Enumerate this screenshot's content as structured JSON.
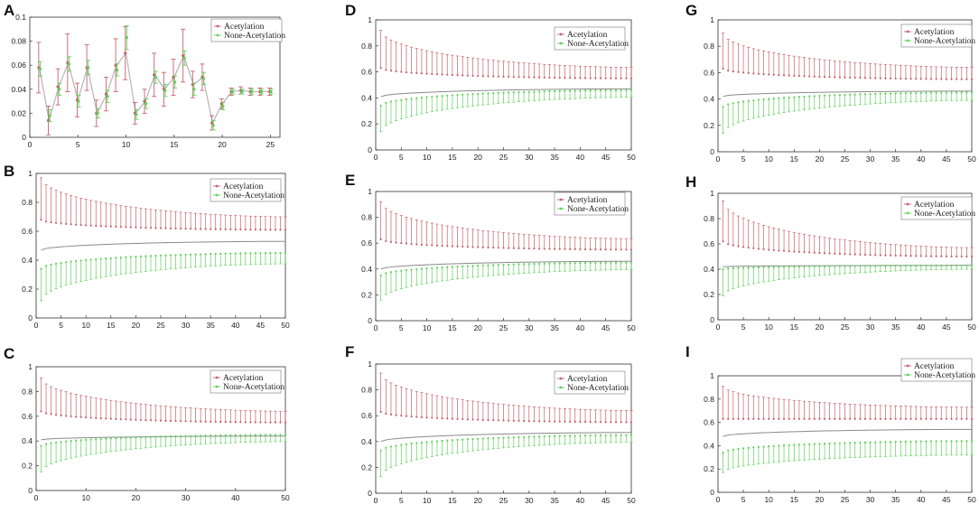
{
  "colors": {
    "acetylation": "#c9616b",
    "none_acetylation": "#5fd25a",
    "mean_line": "#8a8a8a",
    "axis": "#333333"
  },
  "chart_data": [
    {
      "id": "A",
      "letter": "A",
      "type": "line",
      "legend": [
        "Acetylation",
        "None-Acetylation"
      ],
      "x": [
        1,
        2,
        3,
        4,
        5,
        6,
        7,
        8,
        9,
        10,
        11,
        12,
        13,
        14,
        15,
        16,
        17,
        18,
        19,
        20,
        21,
        22,
        23,
        24,
        25
      ],
      "xlim": [
        0,
        26
      ],
      "ylim": [
        0,
        0.1
      ],
      "xticks": [
        0,
        5,
        10,
        15,
        20,
        25
      ],
      "yticks": [
        0,
        0.02,
        0.04,
        0.06,
        0.08,
        0.1
      ],
      "xtick_labels": [
        "0",
        "5",
        "10",
        "15",
        "20",
        "25"
      ],
      "ytick_labels": [
        "0",
        "0.02",
        "0.04",
        "0.06",
        "0.08",
        "0.1"
      ],
      "series": [
        {
          "name": "Acetylation",
          "values": [
            0.058,
            0.014,
            0.042,
            0.062,
            0.031,
            0.058,
            0.02,
            0.036,
            0.06,
            0.07,
            0.02,
            0.03,
            0.052,
            0.04,
            0.05,
            0.068,
            0.044,
            0.05,
            0.012,
            0.028,
            0.038,
            0.039,
            0.038,
            0.038,
            0.038
          ],
          "err": [
            0.021,
            0.012,
            0.015,
            0.024,
            0.014,
            0.019,
            0.011,
            0.014,
            0.022,
            0.022,
            0.009,
            0.01,
            0.018,
            0.014,
            0.015,
            0.022,
            0.011,
            0.011,
            0.006,
            0.004,
            0.003,
            0.003,
            0.003,
            0.003,
            0.003
          ]
        },
        {
          "name": "None-Acetylation",
          "values": [
            0.057,
            0.018,
            0.04,
            0.061,
            0.03,
            0.058,
            0.02,
            0.034,
            0.056,
            0.083,
            0.019,
            0.028,
            0.05,
            0.039,
            0.046,
            0.066,
            0.04,
            0.049,
            0.01,
            0.026,
            0.038,
            0.038,
            0.038,
            0.038,
            0.038
          ],
          "err": [
            0.006,
            0.005,
            0.005,
            0.006,
            0.005,
            0.006,
            0.004,
            0.005,
            0.005,
            0.01,
            0.004,
            0.004,
            0.005,
            0.005,
            0.005,
            0.006,
            0.005,
            0.005,
            0.004,
            0.003,
            0.002,
            0.002,
            0.002,
            0.002,
            0.002
          ]
        }
      ]
    },
    {
      "id": "B",
      "letter": "B",
      "type": "line",
      "legend": [
        "Acetylation",
        "None-Acetylation"
      ],
      "n": 50,
      "xlim": [
        0,
        50
      ],
      "ylim": [
        0,
        1
      ],
      "xticks": [
        0,
        5,
        10,
        15,
        20,
        25,
        30,
        35,
        40,
        45,
        50
      ],
      "xtick_labels": [
        "0",
        "5",
        "10",
        "15",
        "20",
        "25",
        "30",
        "35",
        "40",
        "45",
        "50"
      ],
      "yticks": [
        0,
        0.2,
        0.4,
        0.6,
        0.8,
        1
      ],
      "ytick_labels": [
        "0",
        "0.2",
        "0.4",
        "0.6",
        "0.8",
        "1"
      ],
      "series": [
        {
          "name": "Acetylation",
          "mean_start": 0.68,
          "mean_end": 0.61,
          "err_start": 0.29,
          "err_end": 0.09
        },
        {
          "name": "None-Acetylation",
          "mean_start": 0.34,
          "mean_end": 0.45,
          "err_start": 0.22,
          "err_end": 0.075
        }
      ],
      "mean_line": {
        "start": 0.47,
        "end": 0.53
      }
    },
    {
      "id": "C",
      "letter": "C",
      "type": "line",
      "legend": [
        "Acetylation",
        "None-Acetylation"
      ],
      "n": 50,
      "xlim": [
        0,
        50
      ],
      "ylim": [
        0,
        1
      ],
      "xticks": [
        0,
        10,
        20,
        30,
        40,
        50
      ],
      "xtick_labels": [
        "0",
        "10",
        "20",
        "30",
        "40",
        "50"
      ],
      "yticks": [
        0,
        0.2,
        0.4,
        0.6,
        0.8,
        1
      ],
      "ytick_labels": [
        "0",
        "0.2",
        "0.4",
        "0.6",
        "0.8",
        "1"
      ],
      "series": [
        {
          "name": "Acetylation",
          "mean_start": 0.64,
          "mean_end": 0.55,
          "err_start": 0.27,
          "err_end": 0.09
        },
        {
          "name": "None-Acetylation",
          "mean_start": 0.36,
          "mean_end": 0.45,
          "err_start": 0.21,
          "err_end": 0.055
        }
      ],
      "mean_line": {
        "start": 0.41,
        "end": 0.44
      }
    },
    {
      "id": "D",
      "letter": "D",
      "type": "line",
      "legend": [
        "Acetylation",
        "None-Acetylation"
      ],
      "n": 50,
      "xlim": [
        0,
        50
      ],
      "ylim": [
        0,
        1
      ],
      "xticks": [
        0,
        5,
        10,
        15,
        20,
        25,
        30,
        35,
        40,
        45,
        50
      ],
      "xtick_labels": [
        "0",
        "5",
        "10",
        "15",
        "20",
        "25",
        "30",
        "35",
        "40",
        "45",
        "50"
      ],
      "yticks": [
        0,
        0.2,
        0.4,
        0.6,
        0.8,
        1
      ],
      "ytick_labels": [
        "0",
        "0.2",
        "0.4",
        "0.6",
        "0.8",
        "1"
      ],
      "series": [
        {
          "name": "Acetylation",
          "mean_start": 0.63,
          "mean_end": 0.55,
          "err_start": 0.29,
          "err_end": 0.085
        },
        {
          "name": "None-Acetylation",
          "mean_start": 0.34,
          "mean_end": 0.46,
          "err_start": 0.2,
          "err_end": 0.055
        }
      ],
      "mean_line": {
        "start": 0.41,
        "end": 0.47
      }
    },
    {
      "id": "E",
      "letter": "E",
      "type": "line",
      "legend": [
        "Acetylation",
        "None-Acetylation"
      ],
      "n": 50,
      "xlim": [
        0,
        50
      ],
      "ylim": [
        0,
        1
      ],
      "xticks": [
        0,
        5,
        10,
        15,
        20,
        25,
        30,
        35,
        40,
        45,
        50
      ],
      "xtick_labels": [
        "0",
        "5",
        "10",
        "15",
        "20",
        "25",
        "30",
        "35",
        "40",
        "45",
        "50"
      ],
      "yticks": [
        0,
        0.2,
        0.4,
        0.6,
        0.8,
        1
      ],
      "ytick_labels": [
        "0",
        "0.2",
        "0.4",
        "0.6",
        "0.8",
        "1"
      ],
      "series": [
        {
          "name": "Acetylation",
          "mean_start": 0.63,
          "mean_end": 0.55,
          "err_start": 0.29,
          "err_end": 0.085
        },
        {
          "name": "None-Acetylation",
          "mean_start": 0.35,
          "mean_end": 0.45,
          "err_start": 0.19,
          "err_end": 0.055
        }
      ],
      "mean_line": {
        "start": 0.4,
        "end": 0.46
      }
    },
    {
      "id": "F",
      "letter": "F",
      "type": "line",
      "legend": [
        "Acetylation",
        "None-Acetylation"
      ],
      "n": 50,
      "xlim": [
        0,
        50
      ],
      "ylim": [
        0,
        1
      ],
      "xticks": [
        0,
        5,
        10,
        15,
        20,
        25,
        30,
        35,
        40,
        45,
        50
      ],
      "xtick_labels": [
        "0",
        "5",
        "10",
        "15",
        "20",
        "25",
        "30",
        "35",
        "40",
        "45",
        "50"
      ],
      "yticks": [
        0,
        0.2,
        0.4,
        0.6,
        0.8,
        1
      ],
      "ytick_labels": [
        "0",
        "0.2",
        "0.4",
        "0.6",
        "0.8",
        "1"
      ],
      "series": [
        {
          "name": "Acetylation",
          "mean_start": 0.63,
          "mean_end": 0.55,
          "err_start": 0.3,
          "err_end": 0.09
        },
        {
          "name": "None-Acetylation",
          "mean_start": 0.33,
          "mean_end": 0.45,
          "err_start": 0.2,
          "err_end": 0.055
        }
      ],
      "mean_line": {
        "start": 0.4,
        "end": 0.47
      }
    },
    {
      "id": "G",
      "letter": "G",
      "type": "line",
      "legend": [
        "Acetylation",
        "None-Acetylation"
      ],
      "n": 50,
      "xlim": [
        0,
        50
      ],
      "ylim": [
        0,
        1
      ],
      "xticks": [
        0,
        5,
        10,
        15,
        20,
        25,
        30,
        35,
        40,
        45,
        50
      ],
      "xtick_labels": [
        "0",
        "5",
        "10",
        "15",
        "20",
        "25",
        "30",
        "35",
        "40",
        "45",
        "50"
      ],
      "yticks": [
        0,
        0.2,
        0.4,
        0.6,
        0.8,
        1
      ],
      "ytick_labels": [
        "0",
        "0.2",
        "0.4",
        "0.6",
        "0.8",
        "1"
      ],
      "series": [
        {
          "name": "Acetylation",
          "mean_start": 0.63,
          "mean_end": 0.55,
          "err_start": 0.27,
          "err_end": 0.09
        },
        {
          "name": "None-Acetylation",
          "mean_start": 0.34,
          "mean_end": 0.45,
          "err_start": 0.2,
          "err_end": 0.06
        }
      ],
      "mean_line": {
        "start": 0.42,
        "end": 0.46
      }
    },
    {
      "id": "H",
      "letter": "H",
      "type": "line",
      "legend": [
        "Acetylation",
        "None-Acetylation"
      ],
      "n": 50,
      "xlim": [
        0,
        50
      ],
      "ylim": [
        0,
        1
      ],
      "xticks": [
        0,
        5,
        10,
        15,
        20,
        25,
        30,
        35,
        40,
        45,
        50
      ],
      "xtick_labels": [
        "0",
        "5",
        "10",
        "15",
        "20",
        "25",
        "30",
        "35",
        "40",
        "45",
        "50"
      ],
      "yticks": [
        0,
        0.2,
        0.4,
        0.6,
        0.8,
        1
      ],
      "ytick_labels": [
        "0",
        "0.2",
        "0.4",
        "0.6",
        "0.8",
        "1"
      ],
      "series": [
        {
          "name": "Acetylation",
          "mean_start": 0.62,
          "mean_end": 0.5,
          "err_start": 0.32,
          "err_end": 0.07
        },
        {
          "name": "None-Acetylation",
          "mean_start": 0.4,
          "mean_end": 0.43,
          "err_start": 0.21,
          "err_end": 0.03
        }
      ],
      "mean_line": {
        "start": 0.42,
        "end": 0.43
      }
    },
    {
      "id": "I",
      "letter": "I",
      "type": "line",
      "legend": [
        "Acetylation",
        "None-Acetylation"
      ],
      "n": 50,
      "xlim": [
        0,
        50
      ],
      "ylim": [
        0,
        1
      ],
      "xticks": [
        0,
        5,
        10,
        15,
        20,
        25,
        30,
        35,
        40,
        45,
        50
      ],
      "xtick_labels": [
        "0",
        "5",
        "10",
        "15",
        "20",
        "25",
        "30",
        "35",
        "40",
        "45",
        "50"
      ],
      "yticks": [
        0,
        0.2,
        0.4,
        0.6,
        0.8,
        1
      ],
      "ytick_labels": [
        "0",
        "0.2",
        "0.4",
        "0.6",
        "0.8",
        "1"
      ],
      "series": [
        {
          "name": "Acetylation",
          "mean_start": 0.63,
          "mean_end": 0.63,
          "err_start": 0.28,
          "err_end": 0.1
        },
        {
          "name": "None-Acetylation",
          "mean_start": 0.34,
          "mean_end": 0.44,
          "err_start": 0.17,
          "err_end": 0.12
        }
      ],
      "mean_line": {
        "start": 0.48,
        "end": 0.54
      }
    }
  ]
}
